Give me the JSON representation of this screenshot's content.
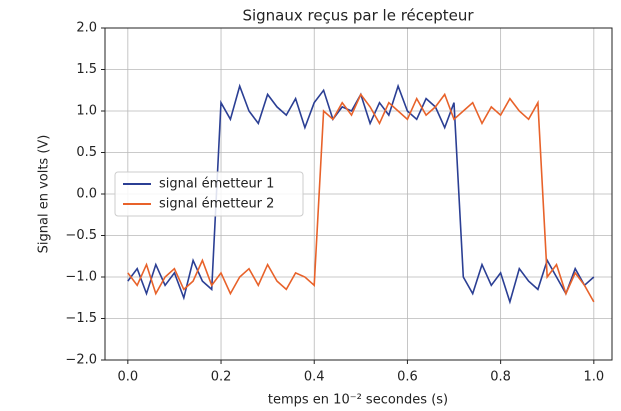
{
  "chart_data": {
    "type": "line",
    "title": "Signaux reçus par le récepteur",
    "x_label": "temps en 10⁻² secondes (s)",
    "y_label": "Signal en volts (V)",
    "x": [
      0,
      0.02,
      0.04,
      0.06,
      0.08,
      0.1,
      0.12,
      0.14,
      0.16,
      0.18,
      0.2,
      0.22,
      0.24,
      0.26,
      0.28,
      0.3,
      0.32,
      0.34,
      0.36,
      0.38,
      0.4,
      0.42,
      0.44,
      0.46,
      0.48,
      0.5,
      0.52,
      0.54,
      0.56,
      0.58,
      0.6,
      0.62,
      0.64,
      0.66,
      0.68,
      0.7,
      0.72,
      0.74,
      0.76,
      0.78,
      0.8,
      0.82,
      0.84,
      0.86,
      0.88,
      0.9,
      0.92,
      0.94,
      0.96,
      0.98,
      1.0
    ],
    "series": [
      {
        "name": "signal émetteur 1",
        "color": "#2b3f94",
        "values": [
          -1.05,
          -0.9,
          -1.2,
          -0.85,
          -1.1,
          -0.95,
          -1.25,
          -0.8,
          -1.05,
          -1.15,
          1.1,
          0.9,
          1.3,
          1.0,
          0.85,
          1.2,
          1.05,
          0.95,
          1.15,
          0.8,
          1.1,
          1.25,
          0.9,
          1.05,
          1.0,
          1.2,
          0.85,
          1.1,
          0.95,
          1.3,
          1.0,
          0.9,
          1.15,
          1.05,
          0.8,
          1.1,
          -1.0,
          -1.2,
          -0.85,
          -1.1,
          -0.95,
          -1.3,
          -0.9,
          -1.05,
          -1.15,
          -0.8,
          -1.0,
          -1.2,
          -0.9,
          -1.1,
          -1.0
        ]
      },
      {
        "name": "signal émetteur 2",
        "color": "#e8622a",
        "values": [
          -0.95,
          -1.1,
          -0.85,
          -1.2,
          -1.0,
          -0.9,
          -1.15,
          -1.05,
          -0.8,
          -1.1,
          -0.95,
          -1.2,
          -1.0,
          -0.9,
          -1.1,
          -0.85,
          -1.05,
          -1.15,
          -0.95,
          -1.0,
          -1.1,
          1.0,
          0.9,
          1.1,
          0.95,
          1.2,
          1.05,
          0.85,
          1.1,
          1.0,
          0.9,
          1.15,
          0.95,
          1.05,
          1.2,
          0.9,
          1.0,
          1.1,
          0.85,
          1.05,
          0.95,
          1.15,
          1.0,
          0.9,
          1.1,
          -1.0,
          -0.85,
          -1.2,
          -0.95,
          -1.1,
          -1.3
        ]
      }
    ],
    "xlim": [
      -0.049,
      1.039
    ],
    "ylim": [
      -2,
      2
    ],
    "xticks": [
      {
        "value": 0,
        "label": "0.0"
      },
      {
        "value": 0.2,
        "label": "0.2"
      },
      {
        "value": 0.4,
        "label": "0.4"
      },
      {
        "value": 0.6,
        "label": "0.6"
      },
      {
        "value": 0.8,
        "label": "0.8"
      },
      {
        "value": 1,
        "label": "1.0"
      }
    ],
    "yticks": [
      {
        "value": -2,
        "label": "−2.0"
      },
      {
        "value": -1.5,
        "label": "−1.5"
      },
      {
        "value": -1,
        "label": "−1.0"
      },
      {
        "value": -0.5,
        "label": "−0.5"
      },
      {
        "value": 0,
        "label": "0.0"
      },
      {
        "value": 0.5,
        "label": "0.5"
      },
      {
        "value": 1,
        "label": "1.0"
      },
      {
        "value": 1.5,
        "label": "1.5"
      },
      {
        "value": 2,
        "label": "2.0"
      }
    ],
    "grid": true,
    "legend": "center left"
  }
}
